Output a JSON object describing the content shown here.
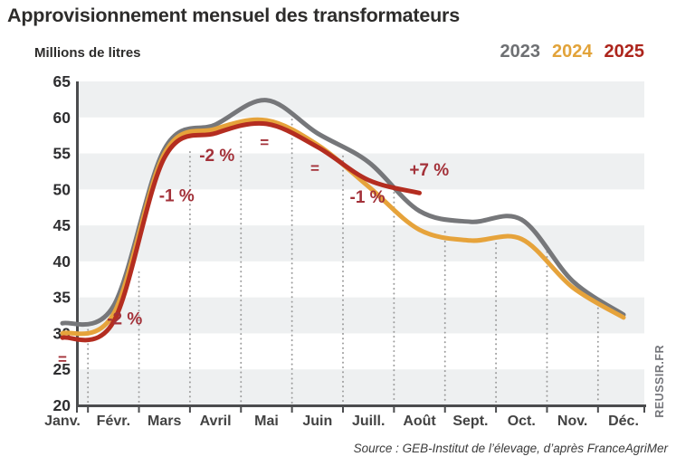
{
  "title": "Approvisionnement mensuel des transformateurs",
  "y_axis_unit_label": "Millions de litres",
  "legend": [
    {
      "label": "2023",
      "color": "#6e7073"
    },
    {
      "label": "2024",
      "color": "#e2a33a"
    },
    {
      "label": "2025",
      "color": "#ad251c"
    }
  ],
  "source": "Source : GEB-Institut de l’élevage, d’après FranceAgriMer",
  "watermark": "REUSSIR.FR",
  "annotation_color": "#a33139",
  "chart_data": {
    "type": "line",
    "title": "Approvisionnement mensuel des transformateurs",
    "ylabel": "Millions de litres",
    "ylim": [
      20,
      65
    ],
    "y_ticks": [
      20,
      25,
      30,
      35,
      40,
      45,
      50,
      55,
      60,
      65
    ],
    "categories": [
      "Janv.",
      "Févr.",
      "Mars",
      "Avril",
      "Mai",
      "Juin",
      "Juill.",
      "Août",
      "Sept.",
      "Oct.",
      "Nov.",
      "Déc."
    ],
    "grid": "alternating horizontal stripes every 5 units",
    "stripe_color": "#eef0f1",
    "axis_color": "#4b4c4e",
    "legend_position": "top-right",
    "series": [
      {
        "name": "2023",
        "color": "#76777a",
        "values": [
          31.4,
          33.8,
          55.6,
          59.0,
          62.4,
          57.8,
          53.8,
          47.0,
          45.5,
          45.8,
          37.3,
          32.6
        ]
      },
      {
        "name": "2024",
        "color": "#e6a33b",
        "values": [
          30.0,
          32.7,
          55.0,
          58.4,
          59.6,
          56.2,
          50.4,
          44.4,
          42.9,
          43.1,
          36.4,
          32.2
        ]
      },
      {
        "name": "2025",
        "color": "#b42d20",
        "values": [
          29.4,
          31.6,
          54.4,
          57.8,
          59.1,
          55.9,
          51.3,
          49.5
        ]
      }
    ],
    "annotations": [
      {
        "label": "=",
        "month": "Janv.",
        "x": 0.0,
        "y": 26.5
      },
      {
        "label": "-2 %",
        "month": "Févr.",
        "x": 1.22,
        "y": 32.0
      },
      {
        "label": "-1 %",
        "month": "Mars",
        "x": 2.24,
        "y": 49.1
      },
      {
        "label": "-2 %",
        "month": "Avril",
        "x": 3.03,
        "y": 54.7
      },
      {
        "label": "=",
        "month": "Mai",
        "x": 3.96,
        "y": 56.6
      },
      {
        "label": "=",
        "month": "Juin",
        "x": 4.95,
        "y": 53.0
      },
      {
        "label": "-1 %",
        "month": "Juill.",
        "x": 5.98,
        "y": 48.9
      },
      {
        "label": "+7 %",
        "month": "Août",
        "x": 7.19,
        "y": 52.7
      }
    ],
    "dotted_line_tops": [
      30.5,
      38.5,
      55.2,
      57.9,
      59.7,
      54.6,
      50.2,
      44.1,
      42.5,
      41.3,
      33.5
    ]
  }
}
